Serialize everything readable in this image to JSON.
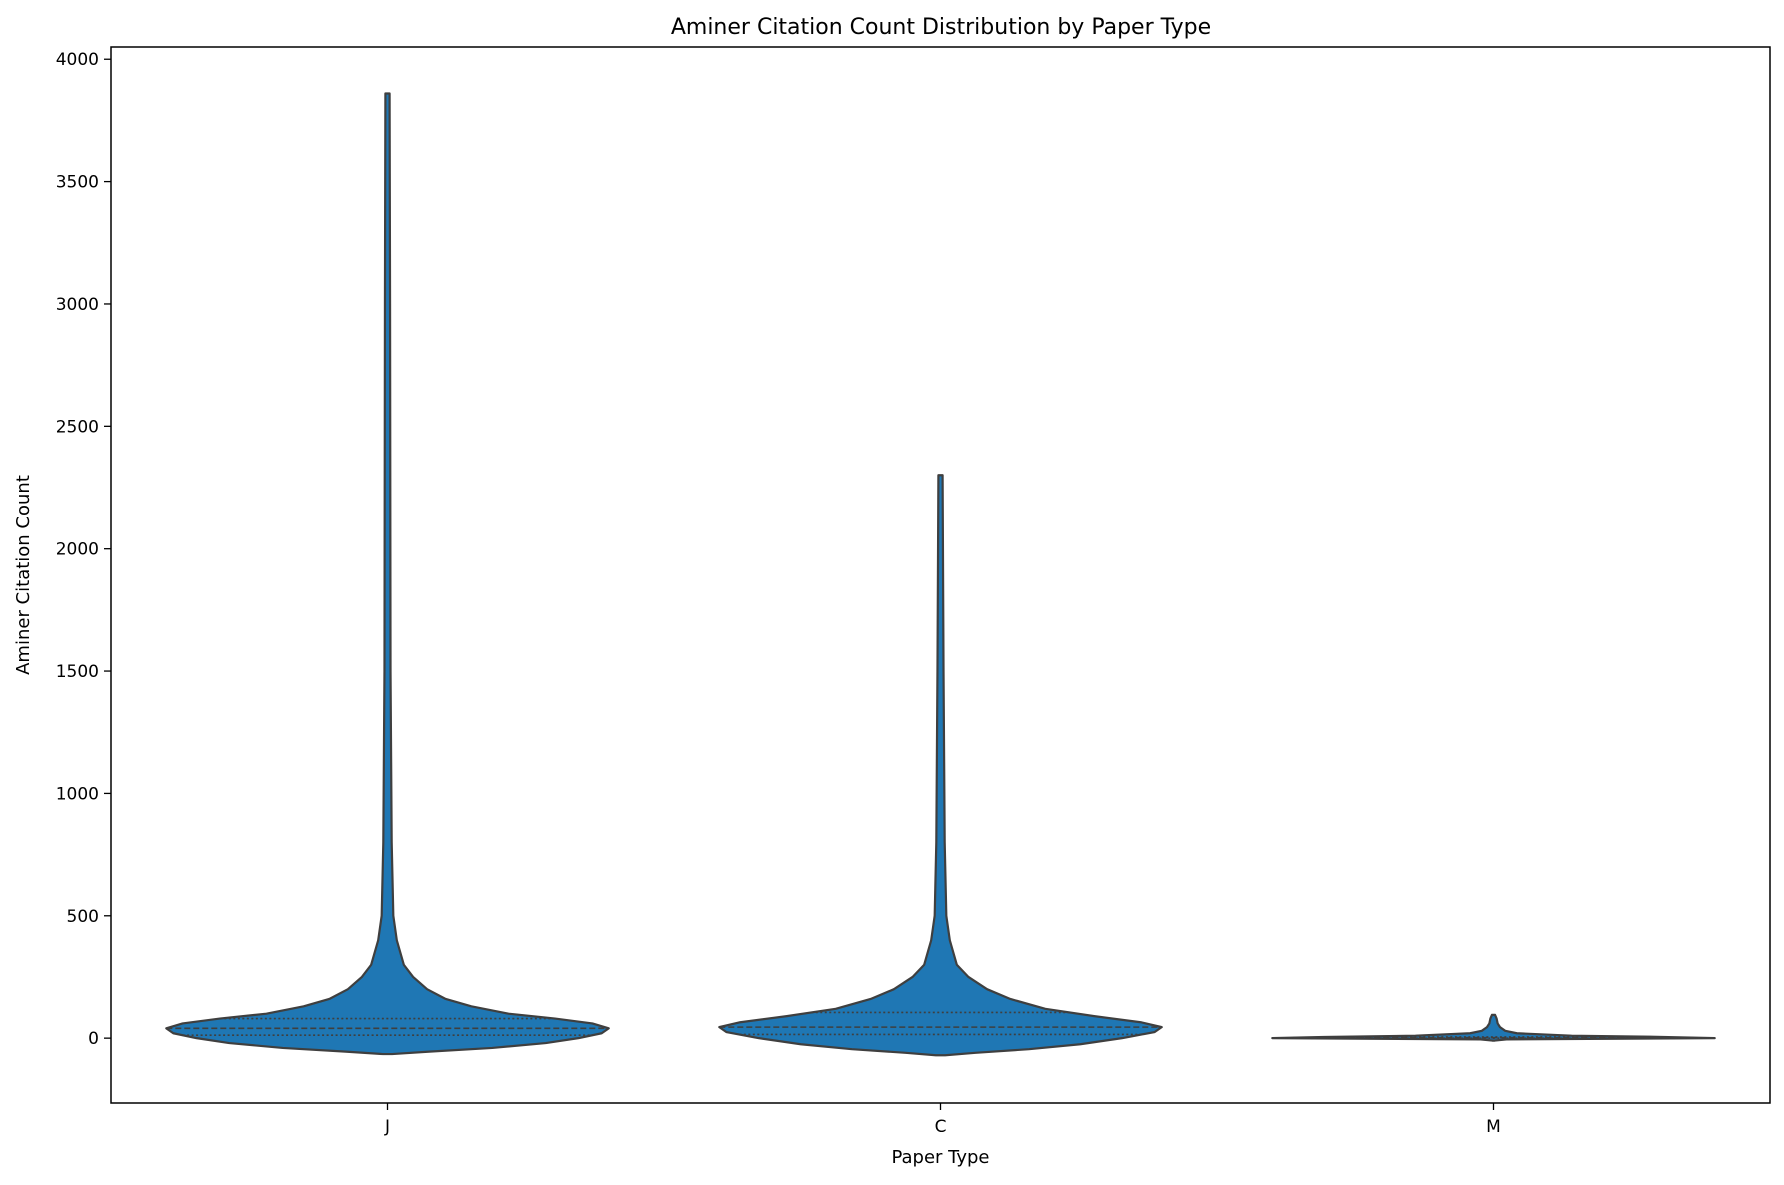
{
  "chart_data": {
    "type": "violin",
    "title": "Aminer Citation Count Distribution by Paper Type",
    "xlabel": "Paper Type",
    "ylabel": "Aminer Citation Count",
    "categories": [
      "J",
      "C",
      "M"
    ],
    "ylim": [
      -265,
      4050
    ],
    "yticks": [
      0,
      500,
      1000,
      1500,
      2000,
      2500,
      3000,
      3500,
      4000
    ],
    "grid": false,
    "fill_color": "#1f77b4",
    "line_color": "#3f3f3f",
    "violins": [
      {
        "category": "J",
        "min": -65,
        "max": 3860,
        "quartiles": [
          12,
          40,
          80
        ],
        "profile": [
          [
            -65,
            0.02
          ],
          [
            -55,
            0.18
          ],
          [
            -40,
            0.45
          ],
          [
            -20,
            0.68
          ],
          [
            0,
            0.82
          ],
          [
            20,
            0.92
          ],
          [
            40,
            0.95
          ],
          [
            60,
            0.88
          ],
          [
            80,
            0.72
          ],
          [
            100,
            0.52
          ],
          [
            130,
            0.36
          ],
          [
            160,
            0.25
          ],
          [
            200,
            0.17
          ],
          [
            250,
            0.11
          ],
          [
            300,
            0.07
          ],
          [
            400,
            0.04
          ],
          [
            500,
            0.025
          ],
          [
            800,
            0.018
          ],
          [
            1500,
            0.013
          ],
          [
            3000,
            0.011
          ],
          [
            3860,
            0.009
          ]
        ]
      },
      {
        "category": "C",
        "min": -70,
        "max": 2300,
        "quartiles": [
          15,
          45,
          105
        ],
        "profile": [
          [
            -70,
            0.02
          ],
          [
            -60,
            0.15
          ],
          [
            -45,
            0.38
          ],
          [
            -25,
            0.6
          ],
          [
            0,
            0.78
          ],
          [
            25,
            0.92
          ],
          [
            45,
            0.95
          ],
          [
            65,
            0.86
          ],
          [
            90,
            0.66
          ],
          [
            120,
            0.45
          ],
          [
            160,
            0.3
          ],
          [
            200,
            0.2
          ],
          [
            250,
            0.12
          ],
          [
            300,
            0.07
          ],
          [
            400,
            0.04
          ],
          [
            500,
            0.025
          ],
          [
            800,
            0.018
          ],
          [
            1500,
            0.013
          ],
          [
            2300,
            0.009
          ]
        ]
      },
      {
        "category": "M",
        "min": -10,
        "max": 95,
        "quartiles": [
          0,
          2,
          5
        ],
        "profile": [
          [
            -10,
            0.05
          ],
          [
            -5,
            0.5
          ],
          [
            0,
            8.5
          ],
          [
            5,
            6.5
          ],
          [
            10,
            3.0
          ],
          [
            20,
            0.9
          ],
          [
            30,
            0.45
          ],
          [
            45,
            0.25
          ],
          [
            60,
            0.16
          ],
          [
            80,
            0.12
          ],
          [
            95,
            0.06
          ]
        ]
      }
    ]
  }
}
